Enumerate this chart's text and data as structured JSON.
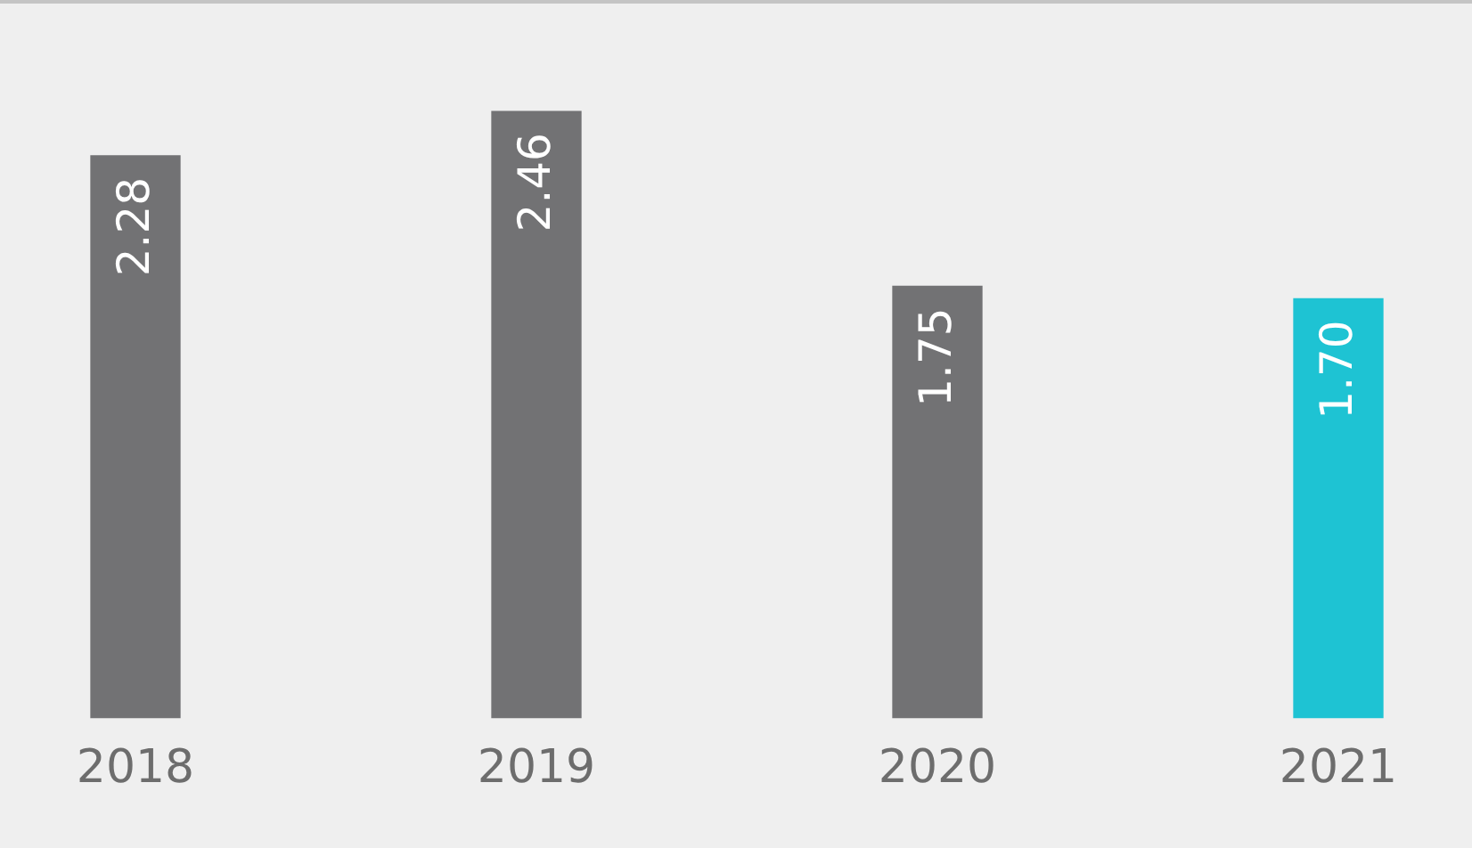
{
  "chart_data": {
    "type": "bar",
    "categories": [
      "2018",
      "2019",
      "2020",
      "2021"
    ],
    "values": [
      2.28,
      2.46,
      1.75,
      1.7
    ],
    "value_labels": [
      "2.28",
      "2.46",
      "1.75",
      "1.70"
    ],
    "colors": [
      "#727274",
      "#727274",
      "#727274",
      "#1ec3d3"
    ]
  }
}
